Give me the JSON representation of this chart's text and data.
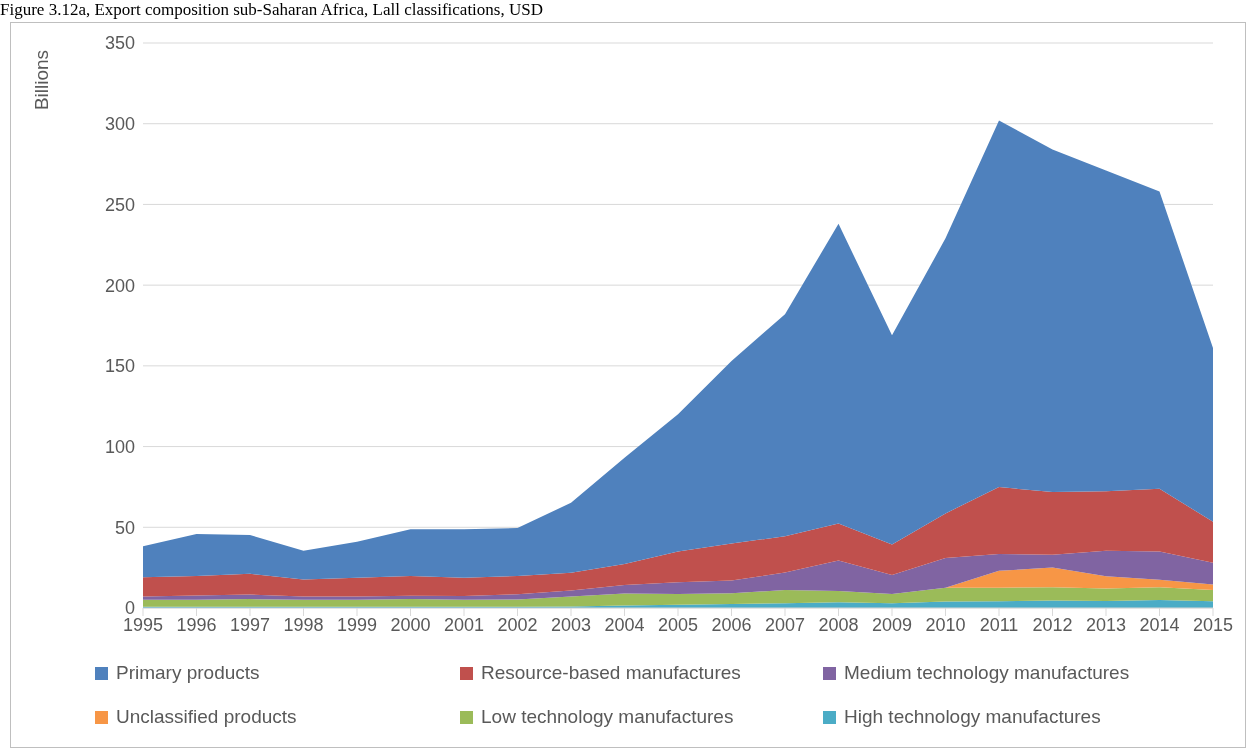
{
  "chart_data": {
    "type": "area",
    "stacked": true,
    "title": "Figure 3.12a, Export composition sub-Saharan Africa, Lall classifications, USD",
    "ylabel": "Billions",
    "categories": [
      "1995",
      "1996",
      "1997",
      "1998",
      "1999",
      "2000",
      "2001",
      "2002",
      "2003",
      "2004",
      "2005",
      "2006",
      "2007",
      "2008",
      "2009",
      "2010",
      "2011",
      "2012",
      "2013",
      "2014",
      "2015"
    ],
    "series": [
      {
        "name": "High technology manufactures",
        "color": "#4bacc6",
        "values": [
          0.7,
          0.7,
          0.7,
          0.7,
          0.7,
          0.7,
          0.7,
          0.7,
          1,
          1.5,
          2,
          2.5,
          3,
          3.5,
          3,
          4,
          4.2,
          4.7,
          4.4,
          4.9,
          4.2
        ]
      },
      {
        "name": "Low technology manufactures",
        "color": "#9bbb59",
        "values": [
          4.4,
          4.4,
          4.8,
          4.4,
          4.4,
          4.8,
          4.4,
          4.6,
          6.1,
          7.5,
          6.6,
          6.6,
          8.1,
          7.1,
          5.6,
          8.6,
          8.4,
          8.1,
          7.7,
          7.9,
          6.9
        ]
      },
      {
        "name": "Unclassified products",
        "color": "#f79646",
        "values": [
          0,
          0,
          0,
          0,
          0,
          0,
          0,
          0,
          0,
          0,
          0,
          0,
          0,
          0,
          0,
          0,
          10.4,
          12.3,
          7.6,
          4.7,
          3.4
        ]
      },
      {
        "name": "Medium technology manufactures",
        "color": "#8064a2",
        "values": [
          2,
          2.7,
          2.8,
          2,
          2,
          2.1,
          2.3,
          3.2,
          3.7,
          5.3,
          7.4,
          7.9,
          10.9,
          18.9,
          11.9,
          18.4,
          10.5,
          7.9,
          15.8,
          17.5,
          13.5
        ]
      },
      {
        "name": "Resource-based manufactures",
        "color": "#c0504d",
        "values": [
          12,
          12,
          12.9,
          10.6,
          11.6,
          12.2,
          11.3,
          11.3,
          11.1,
          12.9,
          19,
          23,
          22.4,
          22.8,
          18.9,
          27.6,
          41.4,
          38.9,
          36.9,
          38.9,
          25.4
        ]
      },
      {
        "name": "Primary products",
        "color": "#4f81bd",
        "values": [
          19.1,
          26.1,
          24,
          17.8,
          22.3,
          29,
          30.1,
          29.7,
          43.3,
          65.8,
          85,
          113,
          137.6,
          185.7,
          129.6,
          170.4,
          227.1,
          212.1,
          198.6,
          184.1,
          107.6
        ]
      }
    ],
    "ylim": [
      0,
      350
    ],
    "yticks": [
      0,
      50,
      100,
      150,
      200,
      250,
      300,
      350
    ],
    "grid": "y",
    "legend": "bottom"
  }
}
